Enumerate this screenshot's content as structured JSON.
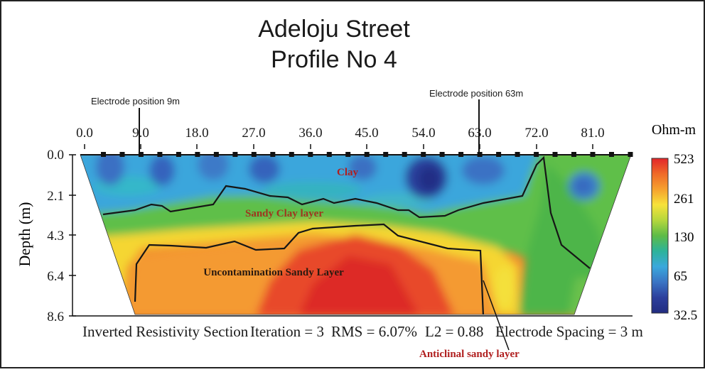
{
  "title_lines": [
    "Adeloju Street",
    "Profile No 4"
  ],
  "electrode_markers": [
    {
      "label": "Electrode  position 9m",
      "position_m": 9
    },
    {
      "label": "Electrode  position 63m",
      "position_m": 63
    }
  ],
  "footer": {
    "section": "Inverted Resistivity Section",
    "iteration": "Iteration = 3",
    "rms": "RMS = 6.07%",
    "l2": "L2 = 0.88",
    "spacing": "Electrode Spacing = 3 m"
  },
  "annotations": {
    "clay": "Clay",
    "sandy_clay": "Sandy Clay layer",
    "sandy_layer": "Uncontamination Sandy Layer",
    "anticlinal": "Anticlinal sandy layer"
  },
  "colors": {
    "annotation_red": "#b01e1e",
    "annotation_dark": "#2a1a10"
  },
  "chart_data": {
    "type": "heatmap",
    "xlabel": "",
    "ylabel": "Depth (m)",
    "x_tick_labels": [
      "0.0",
      "9.0",
      "18.0",
      "27.0",
      "36.0",
      "45.0",
      "54.0",
      "63.0",
      "72.0",
      "81.0"
    ],
    "x_ticks": [
      0,
      9,
      18,
      27,
      36,
      45,
      54,
      63,
      72,
      81
    ],
    "xlim": [
      0,
      90
    ],
    "y_tick_labels": [
      "0.0",
      "2.1",
      "4.3",
      "6.4",
      "8.6"
    ],
    "y_ticks": [
      0,
      2.1,
      4.3,
      6.4,
      8.6
    ],
    "ylim": [
      0,
      8.6
    ],
    "y_inverted": true,
    "colorbar": {
      "title": "Ohm-m",
      "tick_labels": [
        "523",
        "261",
        "130",
        "65",
        "32.5"
      ],
      "scale": "log",
      "range": [
        32.5,
        523
      ],
      "colors": [
        "#e2262a",
        "#ef6a28",
        "#f6a12e",
        "#f7e23a",
        "#b5d73d",
        "#5dbb47",
        "#2db39a",
        "#3aa8dc",
        "#3a74c4",
        "#2c3f9c",
        "#222c80"
      ]
    },
    "electrodes": {
      "spacing_m": 3,
      "positions_m": [
        3,
        6,
        9,
        12,
        15,
        18,
        21,
        24,
        27,
        30,
        33,
        36,
        39,
        42,
        45,
        48,
        51,
        54,
        57,
        60,
        63,
        66,
        69,
        72,
        75,
        78,
        81,
        84,
        87
      ]
    },
    "statistics": {
      "iteration": 3,
      "rms_percent": 6.07,
      "l2": 0.88,
      "electrode_spacing_m": 3
    },
    "layers": [
      {
        "name": "Clay",
        "resistivity_range_ohm_m": [
          32.5,
          130
        ],
        "depth_range_m": [
          0,
          2.5
        ]
      },
      {
        "name": "Sandy Clay layer",
        "resistivity_range_ohm_m": [
          130,
          261
        ],
        "depth_range_m": [
          2.5,
          4.3
        ]
      },
      {
        "name": "Uncontamination Sandy Layer",
        "resistivity_range_ohm_m": [
          261,
          523
        ],
        "depth_range_m": [
          4.3,
          8.6
        ]
      }
    ]
  }
}
